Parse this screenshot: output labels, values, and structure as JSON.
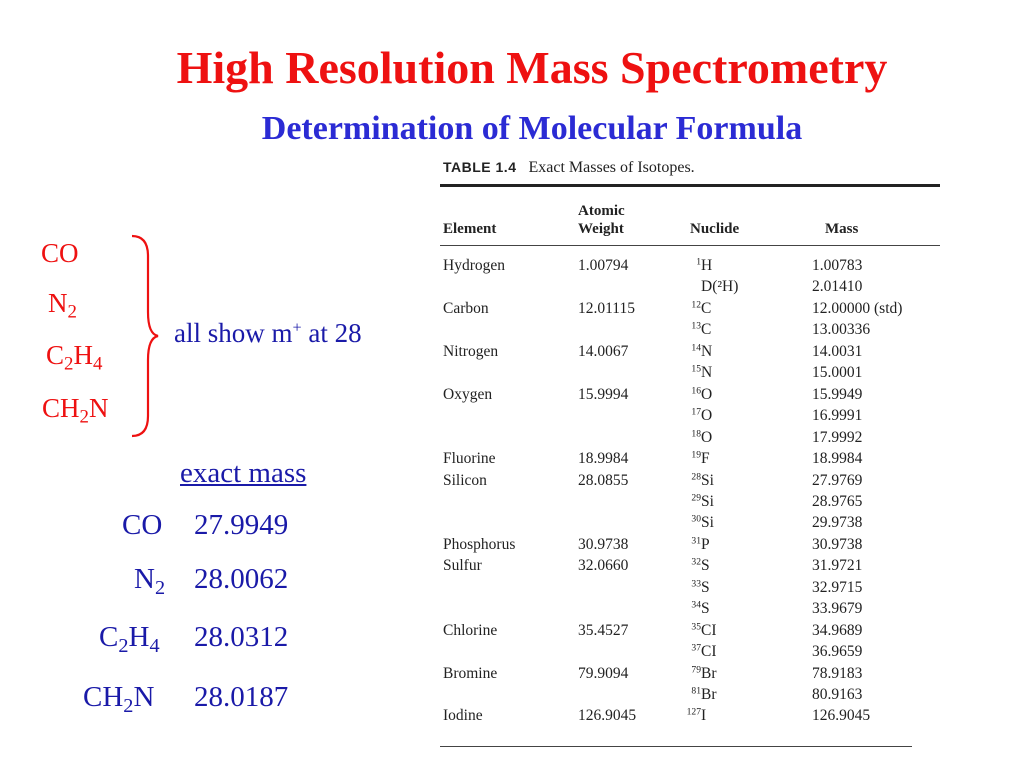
{
  "slide": {
    "title": "High Resolution Mass Spectrometry",
    "subtitle": "Determination of Molecular Formula",
    "colors": {
      "title": "#ee1111",
      "subtitle": "#2b2bd4",
      "formula": "#ee1111",
      "text_blue": "#1a1aa8",
      "table_text": "#222222"
    }
  },
  "formulas": {
    "co": "CO",
    "n2": {
      "base": "N",
      "sub": "2"
    },
    "c2h4": {
      "c": "C",
      "c_sub": "2",
      "h": "H",
      "h_sub": "4"
    },
    "ch2n": {
      "ch": "CH",
      "sub": "2",
      "n": "N"
    }
  },
  "brace_label": {
    "pre": "all show m",
    "sup": "+",
    "post": " at 28"
  },
  "exact_mass": {
    "heading": "exact mass",
    "rows": [
      {
        "formula": "CO",
        "value": "27.9949"
      },
      {
        "formula": "N2",
        "value": "28.0062"
      },
      {
        "formula": "C2H4",
        "value": "28.0312"
      },
      {
        "formula": "CH2N",
        "value": "28.0187"
      }
    ]
  },
  "table": {
    "caption_label": "TABLE 1.4",
    "caption_text": "Exact Masses of Isotopes.",
    "headers": {
      "element": "Element",
      "atomic_1": "Atomic",
      "atomic_2": "Weight",
      "nuclide": "Nuclide",
      "mass": "Mass"
    },
    "rows": [
      {
        "element": "Hydrogen",
        "weight": "1.00794",
        "sup": "1",
        "sym": "H",
        "mass": "1.00783"
      },
      {
        "element": "",
        "weight": "",
        "sup": "",
        "sym": "D(²H)",
        "mass": "2.01410"
      },
      {
        "element": "Carbon",
        "weight": "12.01115",
        "sup": "12",
        "sym": "C",
        "mass": "12.00000 (std)"
      },
      {
        "element": "",
        "weight": "",
        "sup": "13",
        "sym": "C",
        "mass": "13.00336"
      },
      {
        "element": "Nitrogen",
        "weight": "14.0067",
        "sup": "14",
        "sym": "N",
        "mass": "14.0031"
      },
      {
        "element": "",
        "weight": "",
        "sup": "15",
        "sym": "N",
        "mass": "15.0001"
      },
      {
        "element": "Oxygen",
        "weight": "15.9994",
        "sup": "16",
        "sym": "O",
        "mass": "15.9949"
      },
      {
        "element": "",
        "weight": "",
        "sup": "17",
        "sym": "O",
        "mass": "16.9991"
      },
      {
        "element": "",
        "weight": "",
        "sup": "18",
        "sym": "O",
        "mass": "17.9992"
      },
      {
        "element": "Fluorine",
        "weight": "18.9984",
        "sup": "19",
        "sym": "F",
        "mass": "18.9984"
      },
      {
        "element": "Silicon",
        "weight": "28.0855",
        "sup": "28",
        "sym": "Si",
        "mass": "27.9769"
      },
      {
        "element": "",
        "weight": "",
        "sup": "29",
        "sym": "Si",
        "mass": "28.9765"
      },
      {
        "element": "",
        "weight": "",
        "sup": "30",
        "sym": "Si",
        "mass": "29.9738"
      },
      {
        "element": "Phosphorus",
        "weight": "30.9738",
        "sup": "31",
        "sym": "P",
        "mass": "30.9738"
      },
      {
        "element": "Sulfur",
        "weight": "32.0660",
        "sup": "32",
        "sym": "S",
        "mass": "31.9721"
      },
      {
        "element": "",
        "weight": "",
        "sup": "33",
        "sym": "S",
        "mass": "32.9715"
      },
      {
        "element": "",
        "weight": "",
        "sup": "34",
        "sym": "S",
        "mass": "33.9679"
      },
      {
        "element": "Chlorine",
        "weight": "35.4527",
        "sup": "35",
        "sym": "CI",
        "mass": "34.9689"
      },
      {
        "element": "",
        "weight": "",
        "sup": "37",
        "sym": "CI",
        "mass": "36.9659"
      },
      {
        "element": "Bromine",
        "weight": "79.9094",
        "sup": "79",
        "sym": "Br",
        "mass": "78.9183"
      },
      {
        "element": "",
        "weight": "",
        "sup": "81",
        "sym": "Br",
        "mass": "80.9163"
      },
      {
        "element": "Iodine",
        "weight": "126.9045",
        "sup": "127",
        "sym": "I",
        "mass": "126.9045"
      }
    ]
  }
}
